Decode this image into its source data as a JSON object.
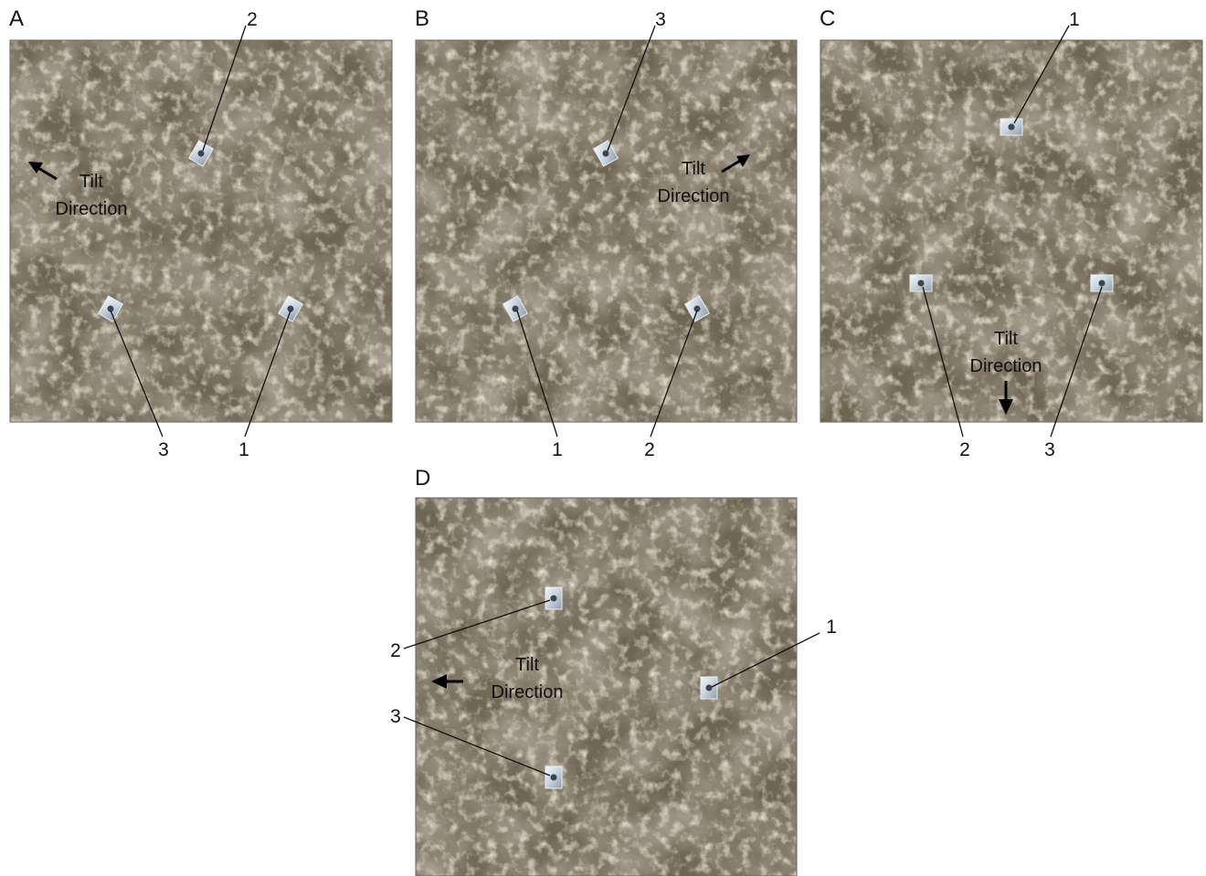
{
  "colors": {
    "rock_base": "#6f6553",
    "rock_light": "#b8ad92",
    "rock_dark": "#3f3a30",
    "sensor_face": "#dfe8ee",
    "sensor_center": "#3a4452",
    "text": "#111111"
  },
  "panels": [
    {
      "letter": "A",
      "tilt_label_line1": "Tilt",
      "tilt_label_line2": "Direction",
      "tilt_arrow": "up-left",
      "sensors": [
        {
          "number": "2",
          "rotation_deg": 30
        },
        {
          "number": "3",
          "rotation_deg": 30
        },
        {
          "number": "1",
          "rotation_deg": 30
        }
      ]
    },
    {
      "letter": "B",
      "tilt_label_line1": "Tilt",
      "tilt_label_line2": "Direction",
      "tilt_arrow": "up-right",
      "sensors": [
        {
          "number": "3",
          "rotation_deg": -30
        },
        {
          "number": "1",
          "rotation_deg": -30
        },
        {
          "number": "2",
          "rotation_deg": -30
        }
      ]
    },
    {
      "letter": "C",
      "tilt_label_line1": "Tilt",
      "tilt_label_line2": "Direction",
      "tilt_arrow": "down",
      "sensors": [
        {
          "number": "1",
          "rotation_deg": 0
        },
        {
          "number": "2",
          "rotation_deg": 0
        },
        {
          "number": "3",
          "rotation_deg": 0
        }
      ]
    },
    {
      "letter": "D",
      "tilt_label_line1": "Tilt",
      "tilt_label_line2": "Direction",
      "tilt_arrow": "left",
      "sensors": [
        {
          "number": "2",
          "rotation_deg": 90
        },
        {
          "number": "1",
          "rotation_deg": 90
        },
        {
          "number": "3",
          "rotation_deg": 90
        }
      ]
    }
  ]
}
